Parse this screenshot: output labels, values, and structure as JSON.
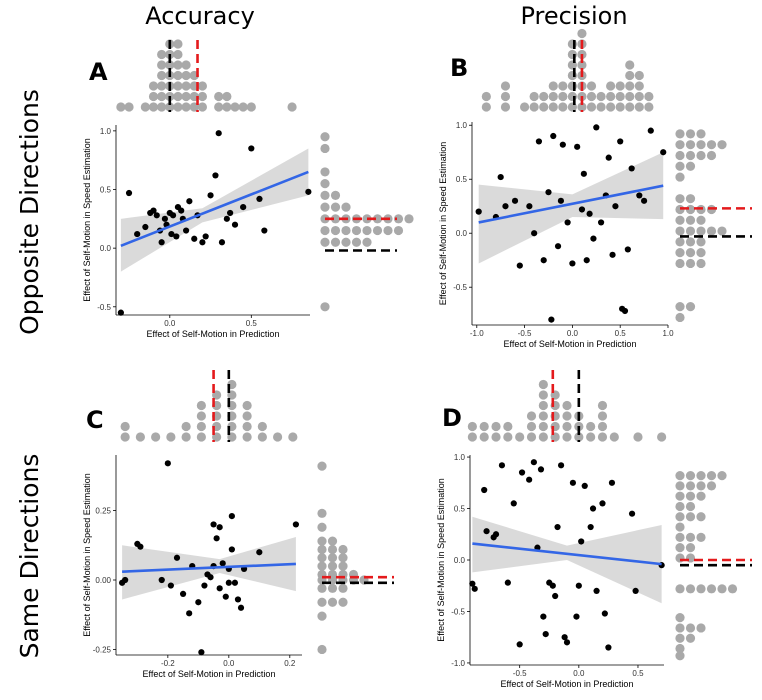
{
  "figure": {
    "column_titles": [
      "Accuracy",
      "Precision"
    ],
    "row_titles": [
      "Opposite Directions",
      "Same Directions"
    ],
    "colors": {
      "points": "#000000",
      "fit_line": "#3366e6",
      "ci_band": "#d3d3d3",
      "marginal_dots": "#a9a9a9",
      "marker_red": "#e41a1c",
      "marker_black": "#000000"
    }
  },
  "chart_data": [
    {
      "panel": "A",
      "type": "scatter",
      "xlabel": "Effect of Self-Motion in Prediction",
      "ylabel": "Effect of Self-Motion in Speed Estimation",
      "xlim": [
        -0.33,
        0.86
      ],
      "ylim": [
        -0.57,
        1.05
      ],
      "xticks": [
        0,
        0.5
      ],
      "xtick_labels": [
        "0.0",
        "0.5"
      ],
      "yticks": [
        -0.5,
        0,
        0.5,
        1.0
      ],
      "ytick_labels": [
        "-0.5",
        "0.0",
        "0.5",
        "1.0"
      ],
      "points": [
        [
          -0.3,
          -0.55
        ],
        [
          -0.25,
          0.47
        ],
        [
          -0.2,
          0.12
        ],
        [
          -0.15,
          0.18
        ],
        [
          -0.12,
          0.3
        ],
        [
          -0.1,
          0.32
        ],
        [
          -0.08,
          0.28
        ],
        [
          -0.06,
          0.15
        ],
        [
          -0.05,
          0.05
        ],
        [
          -0.03,
          0.25
        ],
        [
          -0.02,
          0.2
        ],
        [
          0.0,
          0.3
        ],
        [
          0.01,
          0.12
        ],
        [
          0.02,
          0.28
        ],
        [
          0.04,
          0.1
        ],
        [
          0.05,
          0.35
        ],
        [
          0.07,
          0.32
        ],
        [
          0.08,
          0.25
        ],
        [
          0.1,
          0.15
        ],
        [
          0.12,
          0.4
        ],
        [
          0.15,
          0.08
        ],
        [
          0.17,
          0.28
        ],
        [
          0.2,
          0.05
        ],
        [
          0.22,
          0.1
        ],
        [
          0.25,
          0.45
        ],
        [
          0.28,
          0.62
        ],
        [
          0.3,
          0.98
        ],
        [
          0.32,
          0.05
        ],
        [
          0.35,
          0.25
        ],
        [
          0.37,
          0.3
        ],
        [
          0.4,
          0.2
        ],
        [
          0.45,
          0.35
        ],
        [
          0.5,
          0.85
        ],
        [
          0.55,
          0.42
        ],
        [
          0.58,
          0.15
        ],
        [
          0.85,
          0.48
        ]
      ],
      "fit": {
        "x": [
          -0.3,
          0.85
        ],
        "y": [
          0.02,
          0.65
        ]
      },
      "ci": {
        "x": [
          -0.3,
          0.2,
          0.85
        ],
        "lower": [
          -0.2,
          0.22,
          0.45
        ],
        "upper": [
          0.25,
          0.34,
          0.85
        ]
      },
      "marginal_top": {
        "bins": [
          -0.3,
          -0.25,
          -0.15,
          -0.1,
          -0.05,
          0.0,
          0.05,
          0.1,
          0.15,
          0.2,
          0.3,
          0.35,
          0.4,
          0.45,
          0.5,
          0.75
        ],
        "counts": [
          1,
          1,
          1,
          3,
          6,
          7,
          7,
          5,
          4,
          3,
          2,
          2,
          1,
          1,
          1,
          1
        ]
      },
      "marginal_right": {
        "bins": [
          -0.5,
          0.05,
          0.15,
          0.25,
          0.35,
          0.45,
          0.55,
          0.65,
          0.85,
          0.95
        ],
        "counts": [
          1,
          5,
          8,
          9,
          3,
          2,
          1,
          1,
          1,
          1
        ]
      },
      "markers_top": {
        "red": 0.17,
        "black": 0.0
      },
      "markers_right": {
        "red": 0.25,
        "black": -0.02
      }
    },
    {
      "panel": "B",
      "type": "scatter",
      "xlabel": "Effect of Self-Motion in Prediction",
      "ylabel": "Effect of Self-Motion in Speed Estimation",
      "xlim": [
        -1.05,
        1.0
      ],
      "ylim": [
        -0.85,
        1.03
      ],
      "xticks": [
        -1.0,
        -0.5,
        0,
        0.5,
        1.0
      ],
      "xtick_labels": [
        "-1.0",
        "-0.5",
        "0.0",
        "0.5",
        "1.0"
      ],
      "yticks": [
        -0.5,
        0,
        0.5,
        1.0
      ],
      "ytick_labels": [
        "-0.5",
        "0.0",
        "0.5",
        "1.0"
      ],
      "points": [
        [
          -0.98,
          0.2
        ],
        [
          -0.8,
          0.15
        ],
        [
          -0.75,
          0.52
        ],
        [
          -0.7,
          0.25
        ],
        [
          -0.6,
          0.3
        ],
        [
          -0.55,
          -0.3
        ],
        [
          -0.45,
          0.25
        ],
        [
          -0.4,
          0.0
        ],
        [
          -0.35,
          0.85
        ],
        [
          -0.3,
          -0.25
        ],
        [
          -0.25,
          0.38
        ],
        [
          -0.2,
          0.9
        ],
        [
          -0.15,
          -0.12
        ],
        [
          -0.12,
          0.3
        ],
        [
          -0.1,
          0.82
        ],
        [
          -0.05,
          0.1
        ],
        [
          0.0,
          -0.28
        ],
        [
          0.05,
          0.8
        ],
        [
          0.1,
          0.22
        ],
        [
          0.12,
          0.55
        ],
        [
          0.15,
          -0.25
        ],
        [
          0.18,
          0.18
        ],
        [
          0.22,
          -0.05
        ],
        [
          0.25,
          0.98
        ],
        [
          0.3,
          0.1
        ],
        [
          0.35,
          0.35
        ],
        [
          0.38,
          0.7
        ],
        [
          0.42,
          -0.2
        ],
        [
          0.45,
          0.25
        ],
        [
          0.5,
          0.85
        ],
        [
          0.52,
          -0.7
        ],
        [
          0.55,
          -0.72
        ],
        [
          0.58,
          -0.15
        ],
        [
          0.62,
          0.6
        ],
        [
          0.7,
          0.35
        ],
        [
          0.75,
          0.3
        ],
        [
          0.82,
          0.95
        ],
        [
          0.95,
          0.75
        ],
        [
          -0.22,
          -0.8
        ]
      ],
      "fit": {
        "x": [
          -0.98,
          0.95
        ],
        "y": [
          0.1,
          0.44
        ]
      },
      "ci": {
        "x": [
          -0.98,
          0.0,
          0.95
        ],
        "lower": [
          -0.28,
          0.15,
          0.13
        ],
        "upper": [
          0.45,
          0.36,
          0.75
        ]
      },
      "marginal_top": {
        "bins": [
          -0.9,
          -0.7,
          -0.5,
          -0.4,
          -0.3,
          -0.2,
          -0.1,
          0.0,
          0.1,
          0.2,
          0.3,
          0.4,
          0.5,
          0.6,
          0.7,
          0.8
        ],
        "counts": [
          2,
          3,
          1,
          2,
          2,
          3,
          3,
          7,
          8,
          3,
          2,
          3,
          3,
          5,
          4,
          2
        ]
      },
      "marginal_right": {
        "bins": [
          -0.78,
          -0.68,
          -0.28,
          -0.18,
          -0.08,
          0.02,
          0.12,
          0.22,
          0.32,
          0.52,
          0.62,
          0.72,
          0.82,
          0.92
        ],
        "counts": [
          1,
          2,
          3,
          3,
          3,
          5,
          3,
          4,
          2,
          1,
          2,
          4,
          5,
          3
        ]
      },
      "markers_top": {
        "red": 0.1,
        "black": 0.02
      },
      "markers_right": {
        "red": 0.23,
        "black": -0.03
      }
    },
    {
      "panel": "C",
      "type": "scatter",
      "xlabel": "Effect of Self-Motion in Prediction",
      "ylabel": "Effect of Self-Motion in Speed Estimation",
      "xlim": [
        -0.37,
        0.24
      ],
      "ylim": [
        -0.27,
        0.45
      ],
      "xticks": [
        -0.2,
        0.0,
        0.2
      ],
      "xtick_labels": [
        "-0.2",
        "0.0",
        "0.2"
      ],
      "yticks": [
        -0.25,
        0,
        0.25
      ],
      "ytick_labels": [
        "-0.25",
        "0.00",
        "0.25"
      ],
      "points": [
        [
          -0.35,
          -0.01
        ],
        [
          -0.34,
          0.0
        ],
        [
          -0.3,
          0.13
        ],
        [
          -0.29,
          0.12
        ],
        [
          -0.22,
          0.0
        ],
        [
          -0.2,
          0.42
        ],
        [
          -0.19,
          -0.02
        ],
        [
          -0.17,
          0.08
        ],
        [
          -0.15,
          -0.05
        ],
        [
          -0.13,
          -0.12
        ],
        [
          -0.12,
          0.05
        ],
        [
          -0.1,
          -0.08
        ],
        [
          -0.09,
          -0.26
        ],
        [
          -0.08,
          -0.02
        ],
        [
          -0.07,
          0.02
        ],
        [
          -0.06,
          0.01
        ],
        [
          -0.05,
          0.2
        ],
        [
          -0.05,
          0.05
        ],
        [
          -0.04,
          0.15
        ],
        [
          -0.03,
          -0.03
        ],
        [
          -0.02,
          0.06
        ],
        [
          -0.01,
          -0.06
        ],
        [
          0.0,
          0.04
        ],
        [
          0.0,
          -0.01
        ],
        [
          0.01,
          0.11
        ],
        [
          0.01,
          0.23
        ],
        [
          0.02,
          -0.01
        ],
        [
          0.03,
          -0.07
        ],
        [
          0.04,
          -0.1
        ],
        [
          0.05,
          0.04
        ],
        [
          0.1,
          0.1
        ],
        [
          0.22,
          0.2
        ],
        [
          -0.03,
          0.19
        ]
      ],
      "fit": {
        "x": [
          -0.35,
          0.22
        ],
        "y": [
          0.03,
          0.058
        ]
      },
      "ci": {
        "x": [
          -0.35,
          -0.03,
          0.22
        ],
        "lower": [
          -0.07,
          0.025,
          -0.04
        ],
        "upper": [
          0.125,
          0.075,
          0.155
        ]
      },
      "marginal_top": {
        "bins": [
          -0.34,
          -0.29,
          -0.24,
          -0.19,
          -0.14,
          -0.09,
          -0.04,
          0.01,
          0.06,
          0.11,
          0.16,
          0.21
        ],
        "counts": [
          2,
          1,
          1,
          1,
          2,
          4,
          5,
          6,
          4,
          2,
          1,
          1
        ]
      },
      "marginal_right": {
        "bins": [
          -0.25,
          -0.13,
          -0.08,
          -0.03,
          0.0,
          0.02,
          0.05,
          0.08,
          0.11,
          0.14,
          0.19,
          0.24,
          0.41
        ],
        "counts": [
          1,
          1,
          3,
          3,
          5,
          4,
          3,
          3,
          3,
          2,
          1,
          1,
          1
        ]
      },
      "markers_top": {
        "red": -0.05,
        "black": 0.0
      },
      "markers_right": {
        "red": 0.01,
        "black": -0.01
      }
    },
    {
      "panel": "D",
      "type": "scatter",
      "xlabel": "Effect of Self-Motion in Prediction",
      "ylabel": "Effect of Self-Motion in Speed Estimation",
      "xlim": [
        -0.92,
        0.72
      ],
      "ylim": [
        -1.02,
        1.02
      ],
      "xticks": [
        -0.5,
        0.0,
        0.5
      ],
      "xtick_labels": [
        "-0.5",
        "0.0",
        "0.5"
      ],
      "yticks": [
        -1.0,
        -0.5,
        0,
        0.5,
        1.0
      ],
      "ytick_labels": [
        "-1.0",
        "-0.5",
        "0.0",
        "0.5",
        "1.0"
      ],
      "points": [
        [
          -0.9,
          -0.23
        ],
        [
          -0.88,
          -0.28
        ],
        [
          -0.8,
          0.68
        ],
        [
          -0.78,
          0.28
        ],
        [
          -0.72,
          0.22
        ],
        [
          -0.7,
          0.25
        ],
        [
          -0.65,
          0.92
        ],
        [
          -0.6,
          -0.22
        ],
        [
          -0.55,
          0.55
        ],
        [
          -0.5,
          -0.82
        ],
        [
          -0.48,
          0.85
        ],
        [
          -0.42,
          0.78
        ],
        [
          -0.38,
          0.95
        ],
        [
          -0.35,
          0.12
        ],
        [
          -0.3,
          -0.55
        ],
        [
          -0.28,
          -0.72
        ],
        [
          -0.25,
          -0.22
        ],
        [
          -0.22,
          -0.25
        ],
        [
          -0.2,
          -0.35
        ],
        [
          -0.18,
          0.32
        ],
        [
          -0.15,
          0.92
        ],
        [
          -0.12,
          -0.75
        ],
        [
          -0.1,
          -0.8
        ],
        [
          -0.05,
          0.75
        ],
        [
          -0.02,
          -0.55
        ],
        [
          0.0,
          -0.25
        ],
        [
          0.02,
          0.18
        ],
        [
          0.05,
          0.72
        ],
        [
          0.1,
          0.32
        ],
        [
          0.12,
          0.5
        ],
        [
          0.15,
          -0.3
        ],
        [
          0.2,
          0.55
        ],
        [
          0.22,
          -0.52
        ],
        [
          0.25,
          -0.85
        ],
        [
          0.28,
          0.75
        ],
        [
          0.45,
          0.45
        ],
        [
          0.48,
          -0.3
        ],
        [
          0.7,
          -0.05
        ],
        [
          -0.32,
          0.88
        ]
      ],
      "fit": {
        "x": [
          -0.9,
          0.7
        ],
        "y": [
          0.16,
          -0.04
        ]
      },
      "ci": {
        "x": [
          -0.9,
          -0.1,
          0.7
        ],
        "lower": [
          -0.12,
          0.0,
          -0.42
        ],
        "upper": [
          0.42,
          0.14,
          0.34
        ]
      },
      "marginal_top": {
        "bins": [
          -0.9,
          -0.8,
          -0.7,
          -0.6,
          -0.5,
          -0.4,
          -0.3,
          -0.2,
          -0.1,
          0.0,
          0.1,
          0.2,
          0.3,
          0.5,
          0.7
        ],
        "counts": [
          2,
          2,
          2,
          2,
          1,
          3,
          6,
          5,
          4,
          3,
          2,
          4,
          1,
          1,
          1
        ]
      },
      "marginal_right": {
        "bins": [
          -0.93,
          -0.86,
          -0.76,
          -0.66,
          -0.56,
          -0.28,
          0.02,
          0.12,
          0.22,
          0.32,
          0.42,
          0.52,
          0.62,
          0.72,
          0.82
        ],
        "counts": [
          1,
          1,
          2,
          3,
          1,
          6,
          2,
          2,
          3,
          1,
          3,
          2,
          3,
          4,
          5
        ]
      },
      "markers_top": {
        "red": -0.22,
        "black": 0.0
      },
      "markers_right": {
        "red": 0.0,
        "black": -0.05
      }
    }
  ]
}
